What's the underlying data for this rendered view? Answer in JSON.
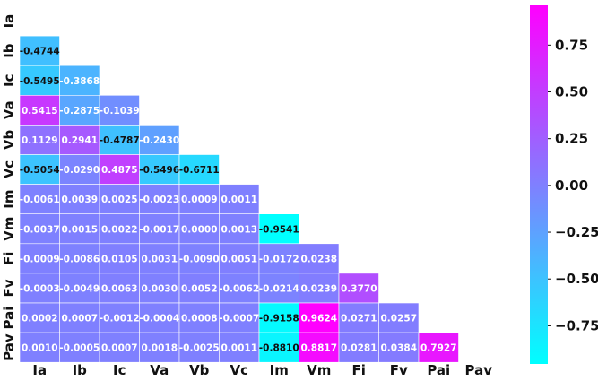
{
  "chart_data": {
    "type": "heatmap",
    "title": "",
    "xlabel": "",
    "ylabel": "",
    "labels": [
      "Ia",
      "Ib",
      "Ic",
      "Va",
      "Vb",
      "Vc",
      "Im",
      "Vm",
      "Fi",
      "Fv",
      "Pai",
      "Pav"
    ],
    "mask": "upper-triangle-including-diagonal",
    "matrix": [
      [],
      [
        -0.4744
      ],
      [
        -0.5495,
        -0.3868
      ],
      [
        0.5415,
        -0.2875,
        -0.1039
      ],
      [
        0.1129,
        0.2941,
        -0.4787,
        -0.243
      ],
      [
        -0.5054,
        -0.029,
        0.4875,
        -0.5496,
        -0.6711
      ],
      [
        -0.0061,
        0.0039,
        0.0025,
        -0.0023,
        0.0009,
        0.0011
      ],
      [
        -0.0037,
        0.0015,
        0.0022,
        -0.0017,
        0.0,
        0.0013,
        -0.9541
      ],
      [
        -0.0009,
        -0.0086,
        0.0105,
        0.0031,
        -0.009,
        0.0051,
        -0.0172,
        0.0238
      ],
      [
        -0.0003,
        -0.0049,
        0.0063,
        0.003,
        0.0052,
        -0.0062,
        -0.0214,
        0.0239,
        0.377
      ],
      [
        0.0002,
        0.0007,
        -0.0012,
        -0.0004,
        0.0008,
        -0.0007,
        -0.9158,
        0.9624,
        0.0271,
        0.0257
      ],
      [
        0.001,
        -0.0005,
        0.0007,
        0.0018,
        -0.0025,
        0.0011,
        -0.881,
        0.8817,
        0.0281,
        0.0384,
        0.7927
      ]
    ],
    "cell_text": [
      [],
      [
        "-0.4744"
      ],
      [
        "-0.5495",
        "-0.3868"
      ],
      [
        "0.5415",
        "-0.2875",
        "-0.1039"
      ],
      [
        "0.1129",
        "0.2941",
        "-0.4787",
        "-0.2430"
      ],
      [
        "-0.5054",
        "-0.0290",
        "0.4875",
        "-0.5496",
        "-0.6711"
      ],
      [
        "-0.0061",
        "0.0039",
        "0.0025",
        "-0.0023",
        "0.0009",
        "0.0011"
      ],
      [
        "-0.0037",
        "0.0015",
        "0.0022",
        "-0.0017",
        "0.0000",
        "0.0013",
        "-0.9541"
      ],
      [
        "-0.0009",
        "-0.0086",
        "0.0105",
        "0.0031",
        "-0.0090",
        "0.0051",
        "-0.0172",
        "0.0238"
      ],
      [
        "-0.0003",
        "-0.0049",
        "0.0063",
        "0.0030",
        "0.0052",
        "-0.0062",
        "-0.0214",
        "0.0239",
        "0.3770"
      ],
      [
        "0.0002",
        "0.0007",
        "-0.0012",
        "-0.0004",
        "0.0008",
        "-0.0007",
        "-0.9158",
        "0.9624",
        "0.0271",
        "0.0257"
      ],
      [
        "0.0010",
        "-0.0005",
        "0.0007",
        "0.0018",
        "-0.0025",
        "0.0011",
        "-0.8810",
        "0.8817",
        "0.0281",
        "0.0384",
        "0.7927"
      ]
    ],
    "colormap": "cool",
    "colorbar": {
      "range": [
        -0.9541,
        0.9624
      ],
      "ticks": [
        0.75,
        0.5,
        0.25,
        0.0,
        -0.25,
        -0.5,
        -0.75
      ],
      "tick_labels": [
        "0.75",
        "0.50",
        "0.25",
        "0.00",
        "−0.25",
        "−0.50",
        "−0.75"
      ],
      "colors": [
        "#00ffff",
        "#ff00ff"
      ]
    }
  }
}
